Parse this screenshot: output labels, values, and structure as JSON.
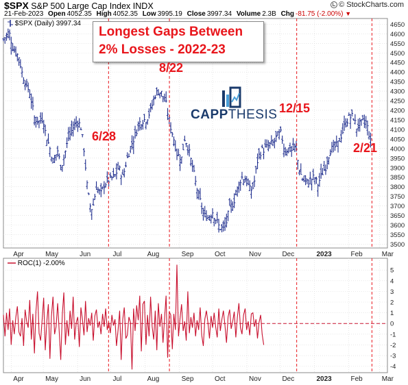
{
  "header": {
    "symbol": "$SPX",
    "name": "S&P 500 Large Cap Index",
    "exchange": "INDX",
    "date": "21-Feb-2023",
    "open_label": "Open",
    "open": "4052.35",
    "high_label": "High",
    "high": "4052.35",
    "low_label": "Low",
    "low": "3995.19",
    "close_label": "Close",
    "close": "3997.34",
    "volume_label": "Volume",
    "volume": "2.3B",
    "chg_label": "Chg",
    "chg": "-81.75 (-2.00%)",
    "brand": "© StockCharts.com"
  },
  "annotations": {
    "title_line1": "Longest Gaps Between",
    "title_line2": "2% Losses - 2022-23",
    "gap_labels": [
      "6/28",
      "8/22",
      "12/15",
      "2/21"
    ],
    "logo_capp": "CAPP",
    "logo_thesis": "THESIS"
  },
  "colors": {
    "bars": "#1c2b8c",
    "roc_line": "#c8102e",
    "annotation_red": "#e8151b",
    "grid": "#d8d8d8",
    "logo_navy": "#1a3a6b",
    "logo_blue": "#4a9fd8"
  },
  "chart_data": [
    {
      "type": "ohlc",
      "legend": "$SPX (Daily) 3997.34",
      "ylim": [
        3480,
        4680
      ],
      "yticks": [
        3500,
        3550,
        3600,
        3650,
        3700,
        3750,
        3800,
        3850,
        3900,
        3950,
        4000,
        4050,
        4100,
        4150,
        4200,
        4250,
        4300,
        4350,
        4400,
        4450,
        4500,
        4550,
        4600,
        4650
      ],
      "x_labels": [
        "Apr",
        "May",
        "Jun",
        "Jul",
        "Aug",
        "Sep",
        "Oct",
        "Nov",
        "Dec",
        "2023",
        "Feb",
        "Mar"
      ],
      "x_label_days": [
        0,
        29,
        60,
        90,
        121,
        152,
        182,
        213,
        243,
        274,
        305,
        333
      ],
      "vertical_markers": [
        {
          "label": "6/28",
          "day": 88
        },
        {
          "label": "8/22",
          "day": 143
        },
        {
          "label": "12/15",
          "day": 258
        },
        {
          "label": "2/21",
          "day": 326
        }
      ],
      "close_path": [
        [
          -7,
          4570
        ],
        [
          -2,
          4610
        ],
        [
          2,
          4520
        ],
        [
          7,
          4480
        ],
        [
          10,
          4390
        ],
        [
          14,
          4330
        ],
        [
          17,
          4290
        ],
        [
          21,
          4160
        ],
        [
          25,
          4140
        ],
        [
          29,
          4160
        ],
        [
          31,
          4080
        ],
        [
          35,
          4000
        ],
        [
          38,
          3930
        ],
        [
          42,
          3990
        ],
        [
          45,
          3900
        ],
        [
          48,
          3960
        ],
        [
          52,
          4060
        ],
        [
          56,
          4110
        ],
        [
          60,
          4150
        ],
        [
          63,
          4110
        ],
        [
          66,
          3990
        ],
        [
          69,
          3780
        ],
        [
          72,
          3680
        ],
        [
          74,
          3700
        ],
        [
          77,
          3800
        ],
        [
          81,
          3760
        ],
        [
          84,
          3810
        ],
        [
          87,
          3830
        ],
        [
          90,
          3840
        ],
        [
          94,
          3860
        ],
        [
          97,
          3900
        ],
        [
          101,
          3850
        ],
        [
          104,
          3930
        ],
        [
          108,
          4010
        ],
        [
          112,
          4070
        ],
        [
          115,
          4130
        ],
        [
          119,
          4150
        ],
        [
          122,
          4150
        ],
        [
          126,
          4200
        ],
        [
          130,
          4280
        ],
        [
          133,
          4300
        ],
        [
          136,
          4290
        ],
        [
          140,
          4230
        ],
        [
          143,
          4140
        ],
        [
          147,
          4050
        ],
        [
          150,
          3970
        ],
        [
          154,
          3950
        ],
        [
          157,
          4060
        ],
        [
          160,
          4000
        ],
        [
          164,
          3900
        ],
        [
          167,
          3810
        ],
        [
          171,
          3720
        ],
        [
          174,
          3650
        ],
        [
          178,
          3640
        ],
        [
          182,
          3670
        ],
        [
          185,
          3630
        ],
        [
          188,
          3590
        ],
        [
          192,
          3580
        ],
        [
          194,
          3600
        ],
        [
          197,
          3680
        ],
        [
          201,
          3720
        ],
        [
          205,
          3800
        ],
        [
          208,
          3850
        ],
        [
          212,
          3840
        ],
        [
          216,
          3780
        ],
        [
          219,
          3800
        ],
        [
          223,
          3950
        ],
        [
          226,
          3990
        ],
        [
          230,
          4000
        ],
        [
          234,
          4020
        ],
        [
          237,
          4030
        ],
        [
          241,
          4070
        ],
        [
          244,
          4080
        ],
        [
          247,
          3990
        ],
        [
          251,
          4000
        ],
        [
          254,
          3990
        ],
        [
          257,
          4010
        ],
        [
          260,
          3900
        ],
        [
          263,
          3840
        ],
        [
          267,
          3820
        ],
        [
          271,
          3840
        ],
        [
          274,
          3850
        ],
        [
          277,
          3810
        ],
        [
          281,
          3870
        ],
        [
          284,
          3900
        ],
        [
          288,
          3990
        ],
        [
          291,
          4000
        ],
        [
          295,
          4020
        ],
        [
          299,
          4080
        ],
        [
          302,
          4130
        ],
        [
          305,
          4160
        ],
        [
          309,
          4170
        ],
        [
          312,
          4110
        ],
        [
          316,
          4130
        ],
        [
          320,
          4150
        ],
        [
          323,
          4090
        ],
        [
          326,
          3997
        ]
      ]
    },
    {
      "type": "line",
      "legend": "ROC(1) -2.00%",
      "ylim": [
        -4.6,
        6.1
      ],
      "yticks": [
        -4,
        -3,
        -2,
        -1,
        0,
        1,
        2,
        3,
        4,
        5
      ],
      "zero_line": true,
      "x_labels": [
        "Apr",
        "May",
        "Jun",
        "Jul",
        "Aug",
        "Sep",
        "Oct",
        "Nov",
        "Dec",
        "2023",
        "Feb",
        "Mar"
      ],
      "series": [
        {
          "start_day": -7,
          "step_days": 1.4,
          "values": [
            0.8,
            -1.2,
            1.0,
            -0.6,
            1.4,
            -2.0,
            0.3,
            -1.0,
            0.6,
            1.6,
            -0.8,
            -1.2,
            0.5,
            -2.1,
            1.3,
            0.2,
            -0.4,
            2.2,
            -1.5,
            0.9,
            -2.8,
            1.1,
            3.0,
            -0.9,
            -1.6,
            0.4,
            2.4,
            -2.5,
            0.2,
            1.8,
            -3.3,
            0.7,
            2.5,
            -1.0,
            -0.3,
            1.9,
            -0.7,
            -3.4,
            0.9,
            2.9,
            -2.0,
            0.3,
            -1.2,
            1.2,
            -0.5,
            2.5,
            -1.5,
            0.1,
            0.6,
            -2.2,
            1.5,
            0.4,
            -1.1,
            2.1,
            -0.8,
            0.5,
            -0.2,
            1.0,
            -1.6,
            0.7,
            1.3,
            -0.4,
            0.2,
            -1.0,
            0.9,
            -0.3,
            1.4,
            -0.6,
            0.1,
            -0.9,
            0.8,
            -0.2,
            0.4,
            -2.1,
            -0.6,
            1.2,
            -3.4,
            0.4,
            1.5,
            -1.4,
            -1.1,
            0.6,
            0.1,
            -4.3,
            1.4,
            -0.7,
            1.7,
            0.3,
            2.6,
            -2.6,
            1.8,
            2.1,
            -2.0,
            0.8,
            -1.2,
            2.5,
            -0.3,
            -1.5,
            1.2,
            -2.5,
            1.9,
            -0.3,
            0.9,
            -1.8,
            0.5,
            2.6,
            -3.2,
            1.1,
            0.8,
            -2.4,
            0.9,
            -0.6,
            5.5,
            -1.2,
            0.5,
            1.8,
            -0.7,
            0.2,
            -1.6,
            3.0,
            -0.9,
            0.6,
            -0.4,
            1.0,
            -1.2,
            0.3,
            -0.6,
            1.5,
            -1.1,
            -2.1,
            0.4,
            1.2,
            0.1,
            -1.4,
            0.7,
            -0.4,
            1.0,
            -0.3,
            -1.3,
            1.4,
            -0.7,
            0.4,
            1.2,
            -0.2,
            -1.8,
            0.6,
            1.3,
            -0.5,
            0.2,
            1.1,
            -1.3,
            0.6,
            1.9,
            -0.4,
            -1.0,
            0.8,
            1.4,
            -0.6,
            0.2,
            -1.1,
            0.9,
            1.0,
            -0.3,
            0.4,
            -1.4,
            0.1,
            0.8,
            -1.0,
            -2.0
          ]
        }
      ]
    }
  ]
}
